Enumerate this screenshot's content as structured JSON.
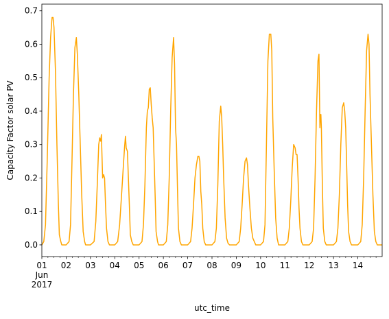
{
  "chart_data": {
    "type": "line",
    "xlabel": "utc_time",
    "ylabel": "Capacity Factor solar PV",
    "xlim": [
      0,
      14
    ],
    "ylim": [
      -0.035,
      0.72
    ],
    "x_unit": "days since 2017-06-01 00:00 UTC",
    "x_ticks": [
      {
        "x": 0,
        "label": "01",
        "sub": [
          "Jun",
          "2017"
        ]
      },
      {
        "x": 1,
        "label": "02"
      },
      {
        "x": 2,
        "label": "03"
      },
      {
        "x": 3,
        "label": "04"
      },
      {
        "x": 4,
        "label": "05"
      },
      {
        "x": 5,
        "label": "06"
      },
      {
        "x": 6,
        "label": "07"
      },
      {
        "x": 7,
        "label": "08"
      },
      {
        "x": 8,
        "label": "09"
      },
      {
        "x": 9,
        "label": "10"
      },
      {
        "x": 10,
        "label": "11"
      },
      {
        "x": 11,
        "label": "12"
      },
      {
        "x": 12,
        "label": "13"
      },
      {
        "x": 13,
        "label": "14"
      }
    ],
    "y_ticks": [
      0.0,
      0.1,
      0.2,
      0.3,
      0.4,
      0.5,
      0.6,
      0.7
    ],
    "y_tick_labels": [
      "0.0",
      "0.1",
      "0.2",
      "0.3",
      "0.4",
      "0.5",
      "0.6",
      "0.7"
    ],
    "series": [
      {
        "color": "#ffa500",
        "points": [
          [
            0.0,
            0.0
          ],
          [
            0.08,
            0.01
          ],
          [
            0.15,
            0.06
          ],
          [
            0.22,
            0.25
          ],
          [
            0.3,
            0.5
          ],
          [
            0.36,
            0.62
          ],
          [
            0.42,
            0.68
          ],
          [
            0.46,
            0.68
          ],
          [
            0.5,
            0.65
          ],
          [
            0.56,
            0.52
          ],
          [
            0.62,
            0.3
          ],
          [
            0.68,
            0.12
          ],
          [
            0.72,
            0.03
          ],
          [
            0.78,
            0.01
          ],
          [
            0.82,
            0.0
          ],
          [
            1.0,
            0.0
          ],
          [
            1.12,
            0.01
          ],
          [
            1.18,
            0.06
          ],
          [
            1.24,
            0.25
          ],
          [
            1.3,
            0.45
          ],
          [
            1.36,
            0.59
          ],
          [
            1.42,
            0.62
          ],
          [
            1.46,
            0.57
          ],
          [
            1.52,
            0.45
          ],
          [
            1.58,
            0.3
          ],
          [
            1.64,
            0.15
          ],
          [
            1.7,
            0.04
          ],
          [
            1.76,
            0.01
          ],
          [
            1.8,
            0.0
          ],
          [
            2.0,
            0.0
          ],
          [
            2.15,
            0.01
          ],
          [
            2.22,
            0.07
          ],
          [
            2.28,
            0.18
          ],
          [
            2.34,
            0.3
          ],
          [
            2.38,
            0.32
          ],
          [
            2.42,
            0.31
          ],
          [
            2.45,
            0.33
          ],
          [
            2.5,
            0.2
          ],
          [
            2.54,
            0.21
          ],
          [
            2.58,
            0.2
          ],
          [
            2.62,
            0.12
          ],
          [
            2.66,
            0.05
          ],
          [
            2.72,
            0.01
          ],
          [
            2.78,
            0.0
          ],
          [
            3.0,
            0.0
          ],
          [
            3.12,
            0.01
          ],
          [
            3.2,
            0.06
          ],
          [
            3.28,
            0.15
          ],
          [
            3.34,
            0.22
          ],
          [
            3.4,
            0.29
          ],
          [
            3.44,
            0.325
          ],
          [
            3.47,
            0.29
          ],
          [
            3.52,
            0.28
          ],
          [
            3.56,
            0.2
          ],
          [
            3.6,
            0.12
          ],
          [
            3.64,
            0.03
          ],
          [
            3.7,
            0.01
          ],
          [
            3.76,
            0.0
          ],
          [
            4.0,
            0.0
          ],
          [
            4.12,
            0.01
          ],
          [
            4.18,
            0.06
          ],
          [
            4.24,
            0.18
          ],
          [
            4.3,
            0.35
          ],
          [
            4.34,
            0.4
          ],
          [
            4.38,
            0.41
          ],
          [
            4.42,
            0.465
          ],
          [
            4.46,
            0.47
          ],
          [
            4.5,
            0.42
          ],
          [
            4.54,
            0.38
          ],
          [
            4.58,
            0.35
          ],
          [
            4.62,
            0.25
          ],
          [
            4.66,
            0.15
          ],
          [
            4.7,
            0.04
          ],
          [
            4.76,
            0.01
          ],
          [
            4.8,
            0.0
          ],
          [
            5.0,
            0.0
          ],
          [
            5.12,
            0.01
          ],
          [
            5.18,
            0.06
          ],
          [
            5.24,
            0.2
          ],
          [
            5.3,
            0.4
          ],
          [
            5.36,
            0.56
          ],
          [
            5.42,
            0.62
          ],
          [
            5.46,
            0.54
          ],
          [
            5.5,
            0.35
          ],
          [
            5.54,
            0.3
          ],
          [
            5.58,
            0.17
          ],
          [
            5.62,
            0.05
          ],
          [
            5.68,
            0.01
          ],
          [
            5.74,
            0.0
          ],
          [
            6.0,
            0.0
          ],
          [
            6.12,
            0.01
          ],
          [
            6.18,
            0.05
          ],
          [
            6.24,
            0.12
          ],
          [
            6.3,
            0.2
          ],
          [
            6.36,
            0.24
          ],
          [
            6.42,
            0.265
          ],
          [
            6.46,
            0.265
          ],
          [
            6.5,
            0.25
          ],
          [
            6.54,
            0.16
          ],
          [
            6.58,
            0.12
          ],
          [
            6.62,
            0.05
          ],
          [
            6.68,
            0.01
          ],
          [
            6.74,
            0.0
          ],
          [
            7.0,
            0.0
          ],
          [
            7.12,
            0.01
          ],
          [
            7.18,
            0.05
          ],
          [
            7.24,
            0.18
          ],
          [
            7.3,
            0.37
          ],
          [
            7.36,
            0.415
          ],
          [
            7.4,
            0.38
          ],
          [
            7.44,
            0.3
          ],
          [
            7.48,
            0.2
          ],
          [
            7.54,
            0.08
          ],
          [
            7.6,
            0.02
          ],
          [
            7.66,
            0.005
          ],
          [
            7.72,
            0.0
          ],
          [
            8.0,
            0.0
          ],
          [
            8.12,
            0.01
          ],
          [
            8.18,
            0.05
          ],
          [
            8.24,
            0.12
          ],
          [
            8.3,
            0.2
          ],
          [
            8.36,
            0.25
          ],
          [
            8.42,
            0.26
          ],
          [
            8.46,
            0.24
          ],
          [
            8.5,
            0.18
          ],
          [
            8.56,
            0.11
          ],
          [
            8.62,
            0.05
          ],
          [
            8.68,
            0.02
          ],
          [
            8.74,
            0.01
          ],
          [
            8.8,
            0.0
          ],
          [
            9.0,
            0.0
          ],
          [
            9.12,
            0.01
          ],
          [
            9.18,
            0.06
          ],
          [
            9.24,
            0.3
          ],
          [
            9.3,
            0.55
          ],
          [
            9.36,
            0.63
          ],
          [
            9.42,
            0.63
          ],
          [
            9.46,
            0.58
          ],
          [
            9.5,
            0.38
          ],
          [
            9.56,
            0.22
          ],
          [
            9.62,
            0.08
          ],
          [
            9.68,
            0.02
          ],
          [
            9.74,
            0.0
          ],
          [
            10.0,
            0.0
          ],
          [
            10.12,
            0.01
          ],
          [
            10.18,
            0.05
          ],
          [
            10.24,
            0.13
          ],
          [
            10.3,
            0.23
          ],
          [
            10.36,
            0.3
          ],
          [
            10.42,
            0.29
          ],
          [
            10.46,
            0.27
          ],
          [
            10.5,
            0.27
          ],
          [
            10.54,
            0.2
          ],
          [
            10.58,
            0.11
          ],
          [
            10.62,
            0.05
          ],
          [
            10.68,
            0.01
          ],
          [
            10.74,
            0.0
          ],
          [
            11.0,
            0.0
          ],
          [
            11.12,
            0.01
          ],
          [
            11.18,
            0.05
          ],
          [
            11.24,
            0.2
          ],
          [
            11.3,
            0.4
          ],
          [
            11.36,
            0.55
          ],
          [
            11.4,
            0.57
          ],
          [
            11.44,
            0.35
          ],
          [
            11.46,
            0.39
          ],
          [
            11.48,
            0.39
          ],
          [
            11.5,
            0.35
          ],
          [
            11.54,
            0.18
          ],
          [
            11.58,
            0.05
          ],
          [
            11.64,
            0.01
          ],
          [
            11.7,
            0.0
          ],
          [
            12.0,
            0.0
          ],
          [
            12.12,
            0.01
          ],
          [
            12.18,
            0.05
          ],
          [
            12.24,
            0.15
          ],
          [
            12.3,
            0.3
          ],
          [
            12.36,
            0.41
          ],
          [
            12.42,
            0.425
          ],
          [
            12.46,
            0.4
          ],
          [
            12.5,
            0.35
          ],
          [
            12.54,
            0.24
          ],
          [
            12.58,
            0.12
          ],
          [
            12.62,
            0.04
          ],
          [
            12.68,
            0.01
          ],
          [
            12.74,
            0.0
          ],
          [
            13.0,
            0.0
          ],
          [
            13.12,
            0.01
          ],
          [
            13.18,
            0.06
          ],
          [
            13.24,
            0.2
          ],
          [
            13.3,
            0.4
          ],
          [
            13.36,
            0.58
          ],
          [
            13.42,
            0.63
          ],
          [
            13.46,
            0.6
          ],
          [
            13.5,
            0.45
          ],
          [
            13.56,
            0.3
          ],
          [
            13.62,
            0.15
          ],
          [
            13.68,
            0.04
          ],
          [
            13.74,
            0.01
          ],
          [
            13.8,
            0.0
          ],
          [
            14.0,
            0.0
          ]
        ]
      }
    ]
  }
}
